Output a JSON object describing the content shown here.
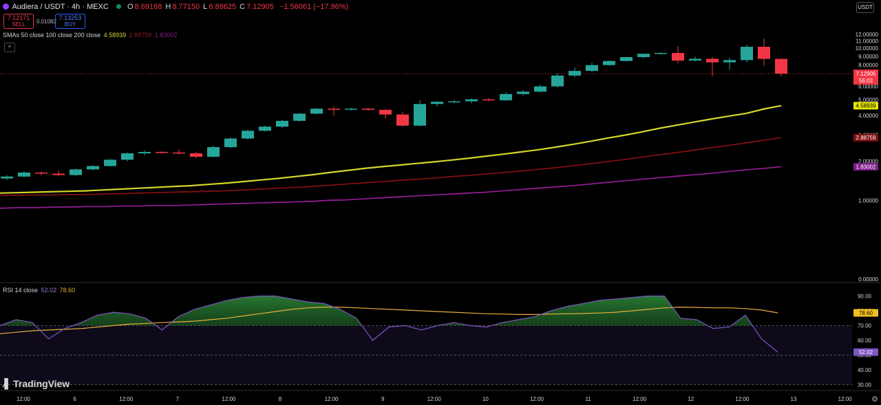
{
  "header": {
    "symbol": "Audiera / USDT · 4h · MEXC",
    "o_label": "O",
    "o_value": "8.69168",
    "h_label": "H",
    "h_value": "8.77150",
    "l_label": "L",
    "l_value": "6.88625",
    "c_label": "C",
    "c_value": "7.12905",
    "change": "−1.56061 (−17.96%)",
    "sell_price": "7.12171",
    "sell_label": "SELL",
    "spread": "0.01082",
    "buy_price": "7.13253",
    "buy_label": "BUY",
    "sma_label": "SMAs 50 close 100 close 200 close",
    "sma50_value": "4.58939",
    "sma100_value": "2.88759",
    "sma200_value": "1.83002",
    "rsi_label": "RSI 14 close",
    "rsi_value": "52.02",
    "rsi_ma_value": "78.60",
    "currency": "USDT",
    "logo": "TradingView",
    "countdown": "56:03"
  },
  "colors": {
    "up": "#26a69a",
    "down": "#f23645",
    "sma50": "#d7d72a",
    "sma100": "#7e1010",
    "sma200": "#8e1c8e",
    "rsi": "#7e57c2",
    "rsi_ma": "#e8b13c"
  },
  "chart_data": [
    {
      "type": "candlestick",
      "title": "Audiera / USDT · 4h · MEXC",
      "x_tick_labels": [
        "12:00",
        "6",
        "12:00",
        "7",
        "12:00",
        "8",
        "12:00",
        "9",
        "12:00",
        "10",
        "12:00",
        "11",
        "12:00",
        "12",
        "12:00",
        "13",
        "12:00"
      ],
      "y_tick_labels": [
        "0.00000",
        "1.00000",
        "2.00000",
        "3.00000",
        "4.00000",
        "5.00000",
        "6.00000",
        "7.00000",
        "8.00000",
        "9.00000",
        "10.00000",
        "11.00000",
        "12.00000"
      ],
      "ylim": [
        0,
        13
      ],
      "scale": "log",
      "grid": false,
      "last_price": 7.12905,
      "ohlc": [
        [
          1.5,
          1.58,
          1.46,
          1.55
        ],
        [
          1.55,
          1.7,
          1.52,
          1.66
        ],
        [
          1.66,
          1.7,
          1.58,
          1.63
        ],
        [
          1.63,
          1.72,
          1.55,
          1.59
        ],
        [
          1.59,
          1.78,
          1.57,
          1.75
        ],
        [
          1.75,
          1.88,
          1.72,
          1.85
        ],
        [
          1.85,
          2.08,
          1.83,
          2.05
        ],
        [
          2.05,
          2.3,
          2.0,
          2.27
        ],
        [
          2.27,
          2.38,
          2.2,
          2.32
        ],
        [
          2.32,
          2.35,
          2.26,
          2.3
        ],
        [
          2.3,
          2.42,
          2.22,
          2.27
        ],
        [
          2.27,
          2.33,
          2.1,
          2.15
        ],
        [
          2.15,
          2.55,
          2.12,
          2.5
        ],
        [
          2.5,
          2.9,
          2.45,
          2.85
        ],
        [
          2.85,
          3.25,
          2.8,
          3.2
        ],
        [
          3.2,
          3.45,
          3.15,
          3.4
        ],
        [
          3.4,
          3.75,
          3.32,
          3.7
        ],
        [
          3.7,
          4.15,
          3.65,
          4.1
        ],
        [
          4.1,
          4.45,
          4.05,
          4.4
        ],
        [
          4.4,
          4.55,
          4.0,
          4.35
        ],
        [
          4.35,
          4.45,
          4.28,
          4.4
        ],
        [
          4.4,
          4.45,
          4.28,
          4.33
        ],
        [
          4.33,
          4.38,
          3.8,
          4.05
        ],
        [
          4.05,
          4.2,
          3.4,
          3.45
        ],
        [
          3.45,
          4.95,
          3.4,
          4.7
        ],
        [
          4.7,
          4.9,
          4.55,
          4.85
        ],
        [
          4.85,
          5.0,
          4.75,
          4.88
        ],
        [
          4.88,
          5.08,
          4.75,
          5.02
        ],
        [
          5.02,
          5.1,
          4.88,
          4.95
        ],
        [
          4.95,
          5.55,
          4.9,
          5.4
        ],
        [
          5.4,
          5.7,
          5.3,
          5.58
        ],
        [
          5.58,
          6.15,
          5.5,
          6.0
        ],
        [
          6.0,
          7.15,
          5.9,
          6.95
        ],
        [
          6.95,
          7.75,
          6.8,
          7.4
        ],
        [
          7.4,
          8.25,
          7.3,
          8.0
        ],
        [
          8.0,
          8.5,
          7.9,
          8.45
        ],
        [
          8.45,
          8.95,
          8.4,
          8.9
        ],
        [
          8.9,
          9.35,
          8.75,
          9.3
        ],
        [
          9.3,
          9.5,
          9.2,
          9.4
        ],
        [
          9.4,
          10.3,
          8.2,
          8.5
        ],
        [
          8.5,
          8.95,
          8.4,
          8.7
        ],
        [
          8.7,
          8.9,
          6.88,
          8.3
        ],
        [
          8.3,
          8.8,
          7.5,
          8.55
        ],
        [
          8.55,
          10.5,
          8.3,
          10.2
        ],
        [
          10.2,
          11.35,
          7.9,
          8.69
        ],
        [
          8.69168,
          8.7715,
          6.88625,
          7.12905
        ]
      ],
      "series": [
        {
          "name": "SMA 50",
          "values": [
            1.15,
            1.16,
            1.17,
            1.18,
            1.19,
            1.2,
            1.22,
            1.24,
            1.26,
            1.28,
            1.3,
            1.32,
            1.35,
            1.38,
            1.42,
            1.46,
            1.5,
            1.55,
            1.6,
            1.66,
            1.72,
            1.78,
            1.83,
            1.88,
            1.93,
            1.98,
            2.04,
            2.1,
            2.17,
            2.24,
            2.32,
            2.4,
            2.5,
            2.61,
            2.73,
            2.87,
            3.0,
            3.15,
            3.32,
            3.48,
            3.64,
            3.8,
            3.96,
            4.12,
            4.38,
            4.58939
          ]
        },
        {
          "name": "SMA 100",
          "values": [
            1.1,
            1.1,
            1.11,
            1.11,
            1.12,
            1.12,
            1.13,
            1.14,
            1.15,
            1.16,
            1.17,
            1.18,
            1.19,
            1.2,
            1.22,
            1.24,
            1.26,
            1.28,
            1.3,
            1.33,
            1.36,
            1.39,
            1.42,
            1.45,
            1.48,
            1.51,
            1.55,
            1.58,
            1.62,
            1.66,
            1.7,
            1.75,
            1.8,
            1.86,
            1.92,
            1.99,
            2.06,
            2.14,
            2.22,
            2.3,
            2.39,
            2.48,
            2.57,
            2.67,
            2.78,
            2.88759
          ]
        },
        {
          "name": "SMA 200",
          "values": [
            0.85,
            0.86,
            0.86,
            0.87,
            0.87,
            0.88,
            0.88,
            0.89,
            0.89,
            0.9,
            0.9,
            0.91,
            0.92,
            0.93,
            0.94,
            0.95,
            0.96,
            0.97,
            0.98,
            1.0,
            1.01,
            1.03,
            1.05,
            1.07,
            1.09,
            1.11,
            1.13,
            1.15,
            1.17,
            1.2,
            1.23,
            1.26,
            1.29,
            1.32,
            1.36,
            1.4,
            1.44,
            1.48,
            1.52,
            1.56,
            1.6,
            1.64,
            1.69,
            1.74,
            1.78,
            1.83002
          ]
        }
      ]
    },
    {
      "type": "line",
      "title": "RSI 14 close",
      "y_tick_labels": [
        "30.00",
        "40.00",
        "50.00",
        "60.00",
        "70.00",
        "80.00",
        "90.00"
      ],
      "ylim": [
        30,
        95
      ],
      "bands": [
        30,
        50,
        70
      ],
      "series": [
        {
          "name": "RSI",
          "values": [
            70,
            74,
            72,
            61,
            68,
            72,
            77,
            79,
            78,
            75,
            67,
            76,
            81,
            84,
            87,
            89,
            90,
            90,
            88,
            86,
            85,
            81,
            75,
            60,
            69,
            70,
            67,
            70,
            72,
            70,
            69,
            72,
            74,
            76,
            80,
            83,
            85,
            87,
            88,
            89,
            90,
            90,
            75,
            74,
            68,
            69,
            77,
            61,
            52.02
          ]
        },
        {
          "name": "RSI-based MA",
          "values": [
            64.5,
            65.5,
            66.5,
            67,
            67.5,
            68,
            69,
            70,
            71,
            71.5,
            72,
            72.5,
            73,
            74,
            75,
            76.5,
            78,
            79.5,
            81,
            82,
            82.5,
            82.5,
            82,
            81.5,
            81,
            80.5,
            80,
            79.5,
            79,
            78.5,
            78,
            77.8,
            77.5,
            77.5,
            77.8,
            78,
            78.2,
            78.5,
            79,
            80,
            81,
            82,
            82.5,
            82.3,
            82,
            82,
            81.5,
            80.5,
            78.6
          ]
        }
      ]
    }
  ]
}
